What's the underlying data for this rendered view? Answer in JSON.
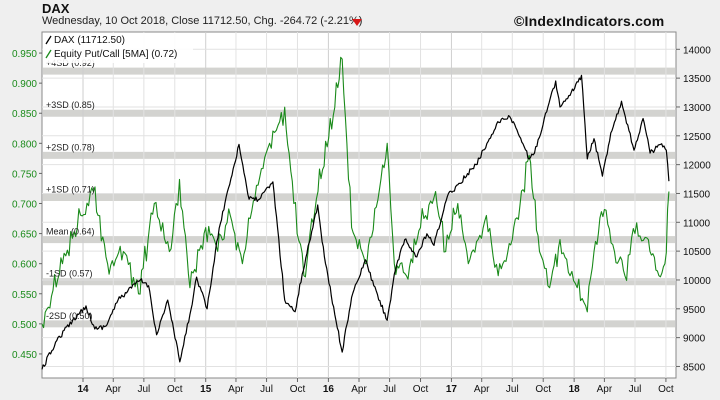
{
  "header": {
    "title": "DAX",
    "subtitle": "Wednesday, 10 Oct 2018, Close 11712.50, Chg. -264.72 (-2.21%)",
    "brand": "©IndexIndicators.com"
  },
  "legend": [
    {
      "label": "DAX (11712.50)",
      "color": "#000000"
    },
    {
      "label": "Equity Put/Call [5MA] (0.72)",
      "color": "#1a8a1a"
    }
  ],
  "colors": {
    "dax": "#000000",
    "putcall": "#1a8a1a",
    "band": "#d3d3d0",
    "grid": "#e2e2e2",
    "plot_bg": "#ffffff"
  },
  "chart_data": {
    "type": "line",
    "x_range": [
      "2013-09-01",
      "2018-10-31"
    ],
    "x_ticks": [
      {
        "label": "14",
        "date": "2014-01-01",
        "bold": true
      },
      {
        "label": "Apr",
        "date": "2014-04-01"
      },
      {
        "label": "Jul",
        "date": "2014-07-01"
      },
      {
        "label": "Oct",
        "date": "2014-10-01"
      },
      {
        "label": "15",
        "date": "2015-01-01",
        "bold": true
      },
      {
        "label": "Apr",
        "date": "2015-04-01"
      },
      {
        "label": "Jul",
        "date": "2015-07-01"
      },
      {
        "label": "Oct",
        "date": "2015-10-01"
      },
      {
        "label": "16",
        "date": "2016-01-01",
        "bold": true
      },
      {
        "label": "Apr",
        "date": "2016-04-01"
      },
      {
        "label": "Jul",
        "date": "2016-07-01"
      },
      {
        "label": "Oct",
        "date": "2016-10-01"
      },
      {
        "label": "17",
        "date": "2017-01-01",
        "bold": true
      },
      {
        "label": "Apr",
        "date": "2017-04-01"
      },
      {
        "label": "Jul",
        "date": "2017-07-01"
      },
      {
        "label": "Oct",
        "date": "2017-10-01"
      },
      {
        "label": "18",
        "date": "2018-01-01",
        "bold": true
      },
      {
        "label": "Apr",
        "date": "2018-04-01"
      },
      {
        "label": "Jul",
        "date": "2018-07-01"
      },
      {
        "label": "Oct",
        "date": "2018-10-01"
      }
    ],
    "right_axis": {
      "range": [
        8300,
        14300
      ],
      "ticks": [
        8500,
        9000,
        9500,
        10000,
        10500,
        11000,
        11500,
        12000,
        12500,
        13000,
        13500,
        14000
      ]
    },
    "left_axis": {
      "range": [
        0.41,
        0.985
      ],
      "ticks": [
        0.45,
        0.5,
        0.55,
        0.6,
        0.65,
        0.7,
        0.75,
        0.8,
        0.85,
        0.9,
        0.95
      ]
    },
    "bands": [
      {
        "label": "+4SD (0.92)",
        "value": 0.92
      },
      {
        "label": "+3SD (0.85)",
        "value": 0.85
      },
      {
        "label": "+2SD (0.78)",
        "value": 0.78
      },
      {
        "label": "+1SD (0.71)",
        "value": 0.71
      },
      {
        "label": "Mean (0.64)",
        "value": 0.64
      },
      {
        "label": "-1SD (0.57)",
        "value": 0.57
      },
      {
        "label": "-2SD (0.50)",
        "value": 0.5
      }
    ],
    "series": [
      {
        "name": "DAX (11712.50)",
        "axis": "right",
        "points": [
          [
            "2013-09-01",
            8450
          ],
          [
            "2013-10-15",
            8950
          ],
          [
            "2013-12-01",
            9300
          ],
          [
            "2014-01-10",
            9550
          ],
          [
            "2014-02-05",
            9150
          ],
          [
            "2014-03-10",
            9200
          ],
          [
            "2014-04-15",
            9650
          ],
          [
            "2014-06-20",
            10000
          ],
          [
            "2014-07-15",
            9900
          ],
          [
            "2014-08-08",
            9050
          ],
          [
            "2014-09-10",
            9650
          ],
          [
            "2014-10-16",
            8580
          ],
          [
            "2014-11-15",
            9400
          ],
          [
            "2014-12-05",
            10050
          ],
          [
            "2015-01-05",
            9500
          ],
          [
            "2015-02-10",
            10900
          ],
          [
            "2015-03-10",
            11600
          ],
          [
            "2015-04-10",
            12350
          ],
          [
            "2015-05-10",
            11400
          ],
          [
            "2015-06-10",
            11400
          ],
          [
            "2015-07-20",
            11700
          ],
          [
            "2015-08-24",
            9650
          ],
          [
            "2015-09-24",
            9450
          ],
          [
            "2015-10-15",
            10100
          ],
          [
            "2015-11-30",
            11300
          ],
          [
            "2015-12-20",
            10400
          ],
          [
            "2016-01-20",
            9400
          ],
          [
            "2016-02-11",
            8750
          ],
          [
            "2016-03-10",
            9700
          ],
          [
            "2016-04-20",
            10350
          ],
          [
            "2016-05-15",
            9900
          ],
          [
            "2016-06-24",
            9300
          ],
          [
            "2016-07-15",
            10100
          ],
          [
            "2016-08-15",
            10700
          ],
          [
            "2016-09-20",
            10400
          ],
          [
            "2016-10-20",
            10800
          ],
          [
            "2016-11-10",
            10600
          ],
          [
            "2016-12-20",
            11450
          ],
          [
            "2017-01-20",
            11650
          ],
          [
            "2017-03-15",
            12000
          ],
          [
            "2017-04-20",
            12400
          ],
          [
            "2017-05-15",
            12700
          ],
          [
            "2017-06-20",
            12850
          ],
          [
            "2017-07-15",
            12600
          ],
          [
            "2017-08-20",
            12100
          ],
          [
            "2017-09-05",
            12200
          ],
          [
            "2017-10-15",
            13000
          ],
          [
            "2017-11-07",
            13450
          ],
          [
            "2017-11-20",
            13000
          ],
          [
            "2017-12-20",
            13200
          ],
          [
            "2018-01-23",
            13550
          ],
          [
            "2018-02-09",
            12100
          ],
          [
            "2018-03-01",
            12450
          ],
          [
            "2018-03-26",
            11800
          ],
          [
            "2018-04-20",
            12550
          ],
          [
            "2018-05-22",
            13100
          ],
          [
            "2018-06-28",
            12250
          ],
          [
            "2018-07-25",
            12800
          ],
          [
            "2018-08-15",
            12200
          ],
          [
            "2018-09-15",
            12350
          ],
          [
            "2018-10-02",
            12250
          ],
          [
            "2018-10-10",
            11712
          ]
        ]
      },
      {
        "name": "Equity Put/Call [5MA] (0.72)",
        "axis": "left",
        "points": [
          [
            "2013-09-01",
            0.5
          ],
          [
            "2013-11-01",
            0.6
          ],
          [
            "2013-12-15",
            0.66
          ],
          [
            "2014-02-01",
            0.72
          ],
          [
            "2014-03-15",
            0.6
          ],
          [
            "2014-05-01",
            0.62
          ],
          [
            "2014-06-15",
            0.55
          ],
          [
            "2014-08-01",
            0.7
          ],
          [
            "2014-09-15",
            0.62
          ],
          [
            "2014-10-15",
            0.74
          ],
          [
            "2014-11-15",
            0.56
          ],
          [
            "2015-01-01",
            0.66
          ],
          [
            "2015-02-01",
            0.63
          ],
          [
            "2015-03-15",
            0.68
          ],
          [
            "2015-04-20",
            0.6
          ],
          [
            "2015-06-01",
            0.73
          ],
          [
            "2015-07-10",
            0.8
          ],
          [
            "2015-08-24",
            0.86
          ],
          [
            "2015-09-20",
            0.7
          ],
          [
            "2015-10-20",
            0.58
          ],
          [
            "2015-12-01",
            0.72
          ],
          [
            "2016-01-20",
            0.86
          ],
          [
            "2016-02-11",
            0.94
          ],
          [
            "2016-03-10",
            0.66
          ],
          [
            "2016-04-20",
            0.6
          ],
          [
            "2016-06-24",
            0.8
          ],
          [
            "2016-07-15",
            0.6
          ],
          [
            "2016-08-20",
            0.58
          ],
          [
            "2016-10-01",
            0.66
          ],
          [
            "2016-11-15",
            0.72
          ],
          [
            "2016-12-15",
            0.62
          ],
          [
            "2017-01-20",
            0.7
          ],
          [
            "2017-02-20",
            0.6
          ],
          [
            "2017-04-15",
            0.68
          ],
          [
            "2017-05-20",
            0.58
          ],
          [
            "2017-07-01",
            0.64
          ],
          [
            "2017-08-20",
            0.78
          ],
          [
            "2017-09-20",
            0.62
          ],
          [
            "2017-10-20",
            0.56
          ],
          [
            "2017-11-20",
            0.64
          ],
          [
            "2017-12-20",
            0.58
          ],
          [
            "2018-01-10",
            0.56
          ],
          [
            "2018-02-09",
            0.52
          ],
          [
            "2018-03-01",
            0.62
          ],
          [
            "2018-04-01",
            0.69
          ],
          [
            "2018-05-01",
            0.62
          ],
          [
            "2018-06-01",
            0.58
          ],
          [
            "2018-07-01",
            0.65
          ],
          [
            "2018-08-10",
            0.64
          ],
          [
            "2018-09-10",
            0.58
          ],
          [
            "2018-09-28",
            0.6
          ],
          [
            "2018-10-10",
            0.72
          ]
        ]
      }
    ]
  }
}
